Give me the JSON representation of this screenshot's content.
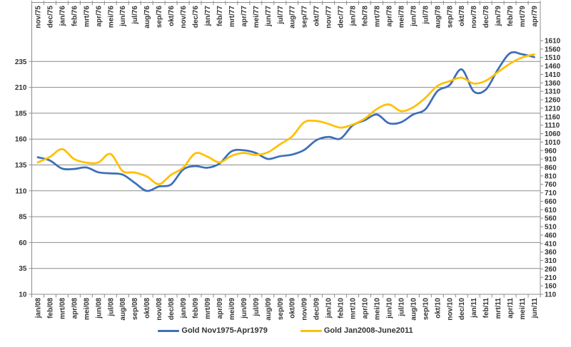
{
  "chart_data": {
    "type": "line",
    "title": "",
    "grid": true,
    "legend_position": "bottom",
    "smooth_lines": true,
    "top_axis_labels": [
      "nov/75",
      "dec/75",
      "jan/76",
      "feb/76",
      "mrt/76",
      "apr/76",
      "mei/76",
      "jun/76",
      "jul/76",
      "aug/76",
      "sep/76",
      "okt/76",
      "nov/76",
      "dec/76",
      "jan/77",
      "feb/77",
      "mrt/77",
      "apr/77",
      "mei/77",
      "jun/77",
      "jul/77",
      "aug/77",
      "sep/77",
      "okt/77",
      "nov/77",
      "dec/77",
      "jan/78",
      "feb/78",
      "mrt/78",
      "apr/78",
      "mei/78",
      "jun/78",
      "jul/78",
      "aug/78",
      "sep/78",
      "okt/78",
      "nov/78",
      "dec/78",
      "jan/79",
      "feb/79",
      "mrt/79",
      "apr/79"
    ],
    "bottom_axis_labels": [
      "jan/08",
      "feb/08",
      "mrt/08",
      "apr/08",
      "mei/08",
      "jun/08",
      "jul/08",
      "aug/08",
      "sep/08",
      "okt/08",
      "nov/08",
      "dec/08",
      "jan/09",
      "feb/09",
      "mrt/09",
      "apr/09",
      "mei/09",
      "jun/09",
      "jul/09",
      "aug/09",
      "sep/09",
      "okt/09",
      "nov/09",
      "dec/09",
      "jan/10",
      "feb/10",
      "mrt/10",
      "apr/10",
      "mei/10",
      "jun/10",
      "jul/10",
      "aug/10",
      "sep/10",
      "okt/10",
      "nov/10",
      "dec/10",
      "jan/11",
      "feb/11",
      "mrt/11",
      "apr/11",
      "mei/11",
      "jun/11"
    ],
    "left_axis": {
      "ticks": [
        10,
        35,
        60,
        85,
        110,
        135,
        160,
        185,
        210,
        235
      ],
      "min": 10,
      "max": 255
    },
    "right_axis": {
      "ticks": [
        110,
        160,
        210,
        260,
        310,
        360,
        410,
        460,
        510,
        560,
        610,
        660,
        710,
        760,
        810,
        860,
        910,
        960,
        1010,
        1060,
        1110,
        1160,
        1210,
        1260,
        1310,
        1360,
        1410,
        1460,
        1510,
        1560,
        1610
      ],
      "min": 110,
      "max": 1610
    },
    "series": [
      {
        "name": "Gold Nov1975-Apr1979",
        "axis": "left",
        "color": "#3E6FB7",
        "values": [
          142.4,
          139.3,
          131.5,
          131.1,
          132.6,
          127.9,
          126.9,
          125.7,
          117.8,
          109.9,
          114.2,
          116.1,
          130.5,
          133.9,
          132.3,
          136.3,
          148.2,
          149.2,
          146.6,
          140.8,
          143.4,
          145.0,
          149.5,
          158.9,
          162.1,
          160.5,
          173.2,
          178.2,
          183.7,
          175.3,
          176.3,
          183.8,
          188.7,
          206.3,
          212.1,
          227.4,
          206.1,
          207.8,
          227.3,
          243.0,
          242.0,
          239.2
        ]
      },
      {
        "name": "Gold Jan2008-June2011",
        "axis": "right",
        "color": "#FFC000",
        "values": [
          889.6,
          922.3,
          968.4,
          909.7,
          888.7,
          889.5,
          939.8,
          839.0,
          829.9,
          806.6,
          760.9,
          816.1,
          858.7,
          943.2,
          924.3,
          890.2,
          928.6,
          945.7,
          934.2,
          949.4,
          996.6,
          1043.2,
          1127.0,
          1134.7,
          1118.0,
          1095.4,
          1113.3,
          1148.7,
          1205.4,
          1232.9,
          1193.0,
          1215.8,
          1271.0,
          1342.0,
          1369.9,
          1390.6,
          1356.4,
          1372.7,
          1424.0,
          1473.8,
          1510.4,
          1528.7
        ]
      }
    ]
  },
  "colors": {
    "grid": "#8C8C8C",
    "axis": "#8C8C8C",
    "tick_text": "#333333"
  }
}
